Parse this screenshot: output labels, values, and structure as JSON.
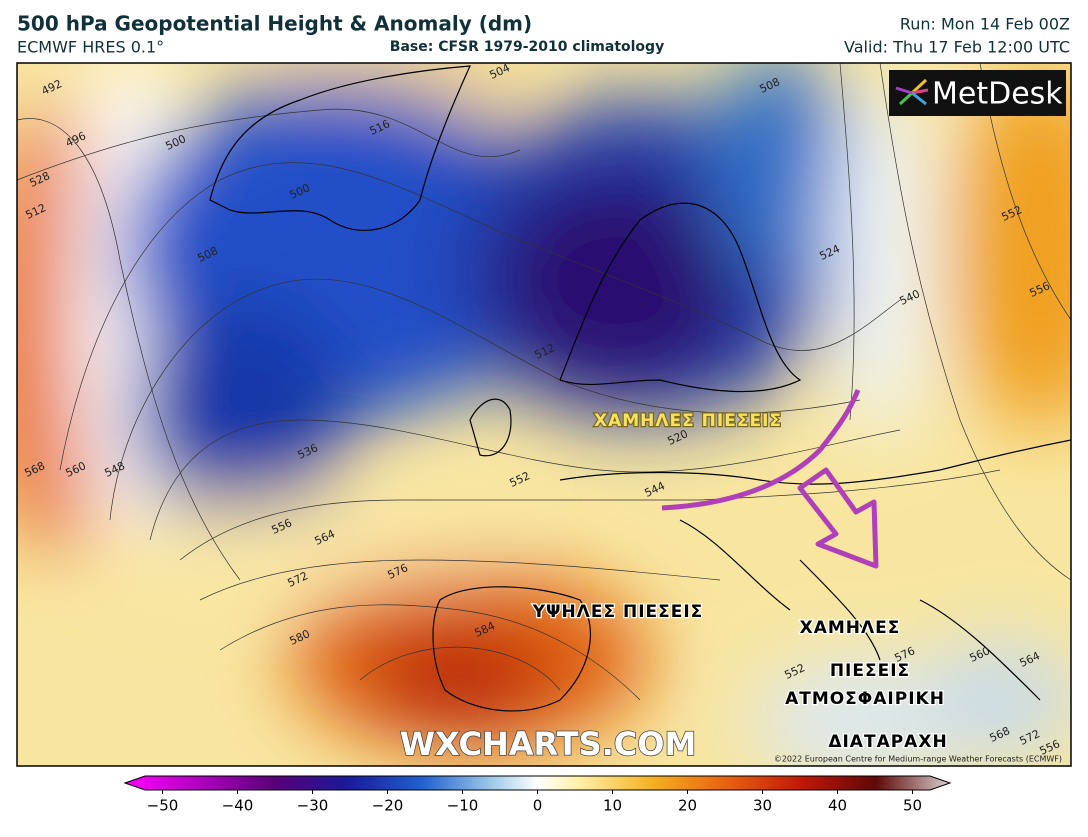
{
  "header": {
    "title": "500 hPa Geopotential Height & Anomaly (dm)",
    "model": "ECMWF HRES 0.1°",
    "base": "Base: CFSR 1979-2010 climatology",
    "run": "Run: Mon 14 Feb 00Z",
    "valid": "Valid: Thu 17 Feb 12:00 UTC"
  },
  "map": {
    "logo": "MetDesk",
    "watermark": "WXCHARTS.COM",
    "copyright": "©2022 European Centre for Medium-range Weather Forecasts (ECMWF)",
    "annotations": [
      "ΧΑΜΗΛΕΣ ΠΙΕΣΕΙΣ",
      "ΥΨΗΛΕΣ ΠΙΕΣΕΙΣ",
      "ΧΑΜΗΛΕΣ",
      "ΠΙΕΣΕΙΣ",
      "ΑΤΜΟΣΦΑΙΡΙΚΗ",
      "ΔΙΑΤΑΡΑΧΗ"
    ],
    "contour_labels": [
      "492",
      "496",
      "500",
      "512",
      "528",
      "508",
      "516",
      "500",
      "504",
      "508",
      "524",
      "540",
      "552",
      "556",
      "512",
      "520",
      "544",
      "536",
      "552",
      "568",
      "560",
      "548",
      "556",
      "564",
      "572",
      "576",
      "580",
      "584",
      "552",
      "560",
      "564",
      "568",
      "572",
      "576",
      "556"
    ]
  },
  "colorbar": {
    "range": [
      -55,
      55
    ],
    "ticks": [
      {
        "value": -50,
        "label": "−50"
      },
      {
        "value": -40,
        "label": "−40"
      },
      {
        "value": -30,
        "label": "−30"
      },
      {
        "value": -20,
        "label": "−20"
      },
      {
        "value": -10,
        "label": "−10"
      },
      0,
      10,
      20,
      30,
      40,
      50
    ]
  }
}
